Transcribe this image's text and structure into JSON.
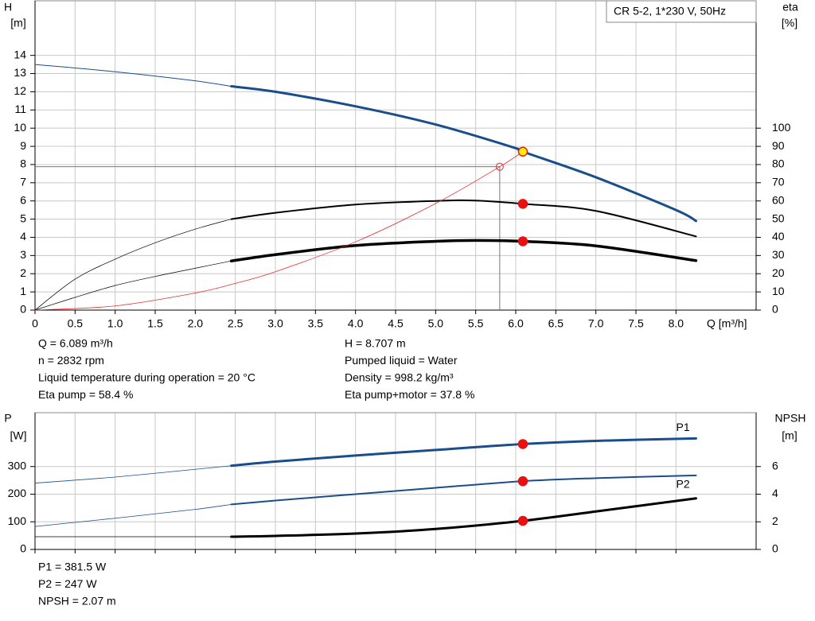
{
  "chart_data": [
    {
      "type": "line",
      "title": "CR 5-2, 1*230 V, 50Hz",
      "y_label": "H",
      "y_unit": "[m]",
      "y2_label": "eta",
      "y2_unit": "[%]",
      "x_label": "Q [m³/h]",
      "xlim": [
        0,
        9
      ],
      "xticks": [
        0,
        0.5,
        {
          "value": 1,
          "label": "1.0"
        },
        1.5,
        {
          "value": 2,
          "label": "2.0"
        },
        2.5,
        {
          "value": 3,
          "label": "3.0"
        },
        3.5,
        {
          "value": 4,
          "label": "4.0"
        },
        4.5,
        {
          "value": 5,
          "label": "5.0"
        },
        5.5,
        {
          "value": 6,
          "label": "6.0"
        },
        6.5,
        {
          "value": 7,
          "label": "7.0"
        },
        7.5,
        {
          "value": 8,
          "label": "8.0"
        }
      ],
      "show_xtick_labels": true,
      "ylim": [
        0,
        17
      ],
      "yticks": [
        0,
        1,
        2,
        3,
        4,
        5,
        6,
        7,
        8,
        9,
        10,
        11,
        12,
        13,
        14
      ],
      "y2lim": [
        0,
        170
      ],
      "y2ticks": [
        0,
        10,
        20,
        30,
        40,
        50,
        60,
        70,
        80,
        90,
        100
      ],
      "grid": true,
      "series": [
        {
          "color": "#1a4d8c",
          "width": 1,
          "x": [
            0,
            1,
            2,
            2.45
          ],
          "values": [
            13.5,
            13.1,
            12.6,
            12.3
          ]
        },
        {
          "color": "#1a4d8c",
          "width": 3,
          "x": [
            2.45,
            3,
            4,
            5,
            6,
            6.089,
            7,
            8,
            8.25
          ],
          "values": [
            12.3,
            12.0,
            11.2,
            10.2,
            8.9,
            8.707,
            7.3,
            5.5,
            4.9
          ]
        },
        {
          "color": "#000000",
          "width": 0.7,
          "axis": "y2",
          "x": [
            0,
            0.5,
            1,
            1.5,
            2,
            2.45
          ],
          "values": [
            0,
            17,
            28,
            37,
            44.5,
            50
          ]
        },
        {
          "color": "#000000",
          "width": 2,
          "axis": "y2",
          "x": [
            2.45,
            3,
            4,
            5,
            5.5,
            6.089,
            7,
            8.25
          ],
          "values": [
            50,
            53.5,
            58,
            60,
            60.2,
            58.4,
            54.5,
            40.5
          ]
        },
        {
          "color": "#000000",
          "width": 0.7,
          "axis": "y2",
          "x": [
            0,
            0.5,
            1,
            1.5,
            2,
            2.45
          ],
          "values": [
            0,
            7,
            13.5,
            18.5,
            23,
            27
          ]
        },
        {
          "color": "#000000",
          "width": 3.5,
          "axis": "y2",
          "x": [
            2.45,
            3,
            4,
            5,
            5.5,
            6.089,
            7,
            8.25
          ],
          "values": [
            27,
            30.5,
            35.5,
            37.8,
            38.3,
            37.8,
            35.3,
            27.2
          ]
        },
        {
          "color": "#e83030",
          "width": 0.8,
          "x": [
            0,
            1,
            2,
            2.5,
            3,
            4,
            5,
            5.8,
            6.089
          ],
          "values": [
            0,
            0.23,
            0.94,
            1.47,
            2.11,
            3.75,
            5.86,
            7.88,
            8.707
          ]
        }
      ],
      "points": [
        {
          "x": 6.089,
          "value": 8.707,
          "color": "#ffee00",
          "stroke": "#e02020"
        },
        {
          "x": 6.089,
          "value": 58.4,
          "axis": "y2",
          "color": "#e81010",
          "stroke": "#e81010"
        },
        {
          "x": 6.089,
          "value": 37.8,
          "axis": "y2",
          "color": "#e81010",
          "stroke": "#e81010"
        }
      ],
      "guide": {
        "x": 5.8,
        "value": 7.88,
        "color": "#e83030"
      },
      "info_left": [
        "Q = 6.089 m³/h",
        "n = 2832 rpm",
        "Liquid temperature during operation = 20 °C",
        "Eta pump = 58.4 %"
      ],
      "info_right": [
        "H = 8.707 m",
        "Pumped liquid = Water",
        "Density = 998.2 kg/m³",
        "Eta pump+motor = 37.8 %"
      ]
    },
    {
      "type": "line",
      "y_label": "P",
      "y_unit": "[W]",
      "y2_label": "NPSH",
      "y2_unit": "[m]",
      "xlim": [
        0,
        9
      ],
      "xticks": [
        0,
        0.5,
        1,
        1.5,
        2,
        2.5,
        3,
        3.5,
        4,
        4.5,
        5,
        5.5,
        6,
        6.5,
        7,
        7.5,
        8
      ],
      "show_xtick_labels": false,
      "ylim": [
        0,
        495
      ],
      "yticks": [
        0,
        100,
        200,
        300
      ],
      "y2lim": [
        0,
        9.9
      ],
      "y2ticks": [
        0,
        2,
        4,
        6
      ],
      "grid": true,
      "series": [
        {
          "color": "#1a4d8c",
          "width": 0.8,
          "x": [
            0,
            1,
            2,
            2.45
          ],
          "values": [
            240,
            262,
            290,
            303
          ]
        },
        {
          "name": "P1",
          "color": "#1a4d8c",
          "width": 3,
          "x": [
            2.45,
            3,
            4,
            5,
            6.089,
            7,
            8.25
          ],
          "values": [
            303,
            318,
            340,
            360,
            381.5,
            393,
            402
          ]
        },
        {
          "color": "#1a4d8c",
          "width": 0.8,
          "x": [
            0,
            1,
            2,
            2.45
          ],
          "values": [
            83,
            113,
            145,
            163
          ]
        },
        {
          "name": "P2",
          "color": "#1a4d8c",
          "width": 2,
          "x": [
            2.45,
            3,
            4,
            5,
            6.089,
            7,
            8.25
          ],
          "values": [
            163,
            177,
            200,
            223,
            247,
            258,
            268
          ]
        },
        {
          "color": "#000000",
          "width": 0.8,
          "axis": "y2",
          "x": [
            0,
            1,
            2,
            2.45
          ],
          "values": [
            0.92,
            0.92,
            0.92,
            0.92
          ]
        },
        {
          "color": "#000000",
          "width": 3,
          "axis": "y2",
          "x": [
            2.45,
            3,
            4,
            5,
            6.089,
            7,
            8.25
          ],
          "values": [
            0.92,
            0.98,
            1.15,
            1.48,
            2.07,
            2.75,
            3.7
          ]
        }
      ],
      "points": [
        {
          "x": 6.089,
          "value": 381.5,
          "color": "#e81010",
          "stroke": "#e81010"
        },
        {
          "x": 6.089,
          "value": 247,
          "color": "#e81010",
          "stroke": "#e81010"
        },
        {
          "x": 6.089,
          "value": 2.07,
          "axis": "y2",
          "color": "#e81010",
          "stroke": "#e81010"
        }
      ],
      "info_left": [
        "P1 = 381.5 W",
        "P2 = 247 W",
        "NPSH = 2.07 m"
      ]
    }
  ]
}
